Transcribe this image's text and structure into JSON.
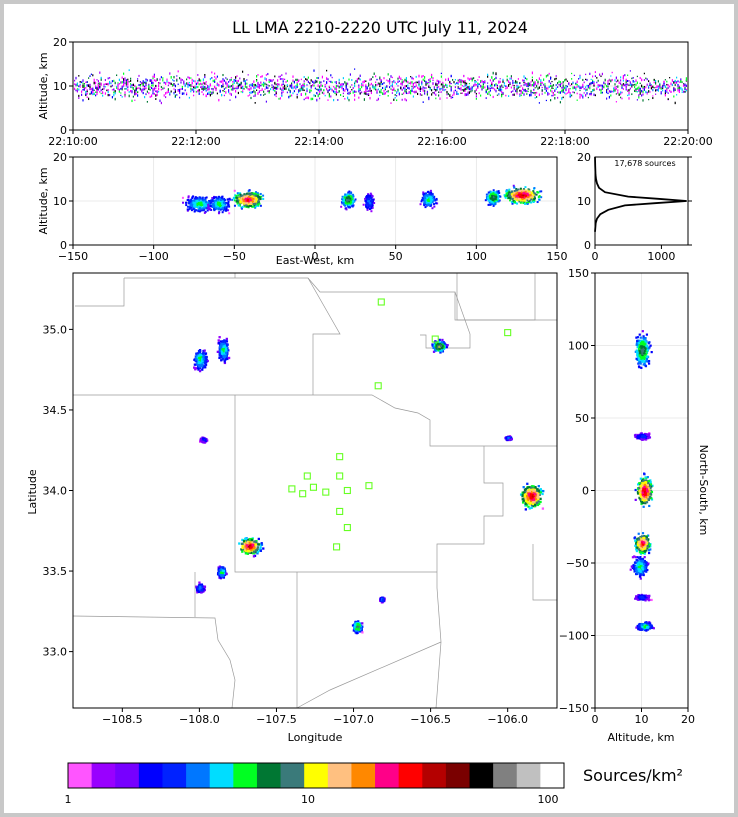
{
  "title": "LL LMA 2210-2220 UTC July 11, 2024",
  "colorbar": {
    "colors": [
      "#ff55ff",
      "#9900ff",
      "#7700ff",
      "#0000ff",
      "#0022ff",
      "#0077ff",
      "#00ddff",
      "#00ff22",
      "#007733",
      "#3a7a7a",
      "#ffff00",
      "#ffc080",
      "#ff8800",
      "#ff0088",
      "#ff0000",
      "#b40000",
      "#7a0000",
      "#000000",
      "#808080",
      "#c0c0c0",
      "#ffffff"
    ],
    "tick_labels": [
      "1",
      "10",
      "100"
    ],
    "unit_label": "Sources/km²"
  },
  "chart_data": [
    {
      "id": "time_height",
      "type": "scatter",
      "xlabel": "",
      "ylabel": "Altitude, km",
      "x_tick_labels": [
        "22:10:00",
        "22:12:00",
        "22:14:00",
        "22:16:00",
        "22:18:00",
        "22:20:00"
      ],
      "xlim_minutes": [
        0,
        10
      ],
      "ylim": [
        0,
        20
      ],
      "y_ticks": [
        0,
        10,
        20
      ],
      "band_center_km": 10,
      "band_half_width_km": 3.5
    },
    {
      "id": "ew_height",
      "type": "heatmap",
      "xlabel": "East-West, km",
      "ylabel": "Altitude, km",
      "xlim": [
        -150,
        150
      ],
      "x_ticks": [
        -150,
        -100,
        -50,
        0,
        50,
        100,
        150
      ],
      "ylim": [
        0,
        20
      ],
      "y_ticks": [
        0,
        10,
        20
      ],
      "clusters": [
        {
          "x": -72,
          "alt": 9.5,
          "width": 12,
          "intensity": 0.5
        },
        {
          "x": -60,
          "alt": 9.5,
          "width": 8,
          "intensity": 0.5
        },
        {
          "x": -42,
          "alt": 10.5,
          "width": 12,
          "intensity": 0.9
        },
        {
          "x": 20,
          "alt": 10.5,
          "width": 6,
          "intensity": 0.6
        },
        {
          "x": 33,
          "alt": 10,
          "width": 4,
          "intensity": 0.4
        },
        {
          "x": 70,
          "alt": 10.5,
          "width": 6,
          "intensity": 0.5
        },
        {
          "x": 110,
          "alt": 11,
          "width": 6,
          "intensity": 0.6
        },
        {
          "x": 128,
          "alt": 11.5,
          "width": 14,
          "intensity": 0.95
        }
      ]
    },
    {
      "id": "alt_histogram",
      "type": "line",
      "annotation": "17,678 sources",
      "xlim": [
        0,
        1400
      ],
      "x_ticks": [
        0,
        1000
      ],
      "ylim": [
        0,
        20
      ],
      "y_ticks": [
        0,
        10,
        20
      ],
      "points": [
        [
          0,
          3
        ],
        [
          10,
          5
        ],
        [
          30,
          6
        ],
        [
          80,
          7
        ],
        [
          200,
          8
        ],
        [
          450,
          9
        ],
        [
          900,
          9.5
        ],
        [
          1380,
          10
        ],
        [
          950,
          10.5
        ],
        [
          500,
          11
        ],
        [
          150,
          12
        ],
        [
          60,
          13
        ],
        [
          30,
          14
        ],
        [
          15,
          15
        ],
        [
          8,
          16
        ],
        [
          3,
          18
        ],
        [
          0,
          20
        ]
      ]
    },
    {
      "id": "plan_view",
      "type": "heatmap",
      "xlabel": "Longitude",
      "ylabel": "Latitude",
      "xlim": [
        -108.82,
        -105.68
      ],
      "x_ticks": [
        -108.5,
        -108.0,
        -107.5,
        -107.0,
        -106.5,
        -106.0
      ],
      "x_tick_labels": [
        "−108.5",
        "−108.0",
        "−107.5",
        "−107.0",
        "−106.5",
        "−106.0"
      ],
      "ylim": [
        32.65,
        35.35
      ],
      "y_ticks": [
        33.0,
        33.5,
        34.0,
        34.5,
        35.0
      ],
      "y_tick_labels": [
        "33.0",
        "33.5",
        "34.0",
        "34.5",
        "35.0"
      ],
      "clusters": [
        {
          "lon": -108.0,
          "lat": 34.82,
          "rx": 0.06,
          "ry": 0.09,
          "intensity": 0.5
        },
        {
          "lon": -107.85,
          "lat": 34.88,
          "rx": 0.05,
          "ry": 0.1,
          "intensity": 0.5
        },
        {
          "lon": -107.98,
          "lat": 34.32,
          "rx": 0.03,
          "ry": 0.02,
          "intensity": 0.3
        },
        {
          "lon": -107.68,
          "lat": 33.66,
          "rx": 0.1,
          "ry": 0.07,
          "intensity": 0.95
        },
        {
          "lon": -107.86,
          "lat": 33.5,
          "rx": 0.04,
          "ry": 0.05,
          "intensity": 0.5
        },
        {
          "lon": -108.0,
          "lat": 33.4,
          "rx": 0.04,
          "ry": 0.04,
          "intensity": 0.4
        },
        {
          "lon": -106.45,
          "lat": 34.9,
          "rx": 0.06,
          "ry": 0.05,
          "intensity": 0.7
        },
        {
          "lon": -106.0,
          "lat": 34.33,
          "rx": 0.03,
          "ry": 0.015,
          "intensity": 0.4
        },
        {
          "lon": -105.85,
          "lat": 33.97,
          "rx": 0.1,
          "ry": 0.1,
          "intensity": 0.95
        },
        {
          "lon": -106.98,
          "lat": 33.16,
          "rx": 0.04,
          "ry": 0.05,
          "intensity": 0.6
        },
        {
          "lon": -106.82,
          "lat": 33.33,
          "rx": 0.02,
          "ry": 0.02,
          "intensity": 0.4
        }
      ],
      "stations": [
        [
          -106.82,
          35.17
        ],
        [
          -106.0,
          34.98
        ],
        [
          -106.84,
          34.65
        ],
        [
          -106.47,
          34.94
        ],
        [
          -107.09,
          34.21
        ],
        [
          -107.3,
          34.09
        ],
        [
          -107.09,
          34.09
        ],
        [
          -107.4,
          34.01
        ],
        [
          -107.33,
          33.98
        ],
        [
          -107.26,
          34.02
        ],
        [
          -107.18,
          33.99
        ],
        [
          -107.04,
          34.0
        ],
        [
          -106.9,
          34.03
        ],
        [
          -107.09,
          33.87
        ],
        [
          -107.04,
          33.77
        ],
        [
          -107.11,
          33.65
        ]
      ]
    },
    {
      "id": "ns_height",
      "type": "heatmap",
      "xlabel": "Altitude, km",
      "ylabel": "North-South, km",
      "xlim": [
        0,
        20
      ],
      "x_ticks": [
        0,
        10,
        20
      ],
      "ylim": [
        -150,
        150
      ],
      "y_ticks": [
        -150,
        -100,
        -50,
        0,
        50,
        100,
        150
      ],
      "clusters": [
        {
          "y": 97,
          "alt": 10,
          "span": 16,
          "intensity": 0.6
        },
        {
          "y": 38,
          "alt": 10,
          "span": 3,
          "intensity": 0.3
        },
        {
          "y": 0,
          "alt": 10.5,
          "span": 14,
          "intensity": 0.95
        },
        {
          "y": -36,
          "alt": 10,
          "span": 10,
          "intensity": 0.9
        },
        {
          "y": -52,
          "alt": 9.5,
          "span": 10,
          "intensity": 0.5
        },
        {
          "y": -73,
          "alt": 10,
          "span": 3,
          "intensity": 0.3
        },
        {
          "y": -93,
          "alt": 10.5,
          "span": 4,
          "intensity": 0.5
        }
      ]
    }
  ]
}
